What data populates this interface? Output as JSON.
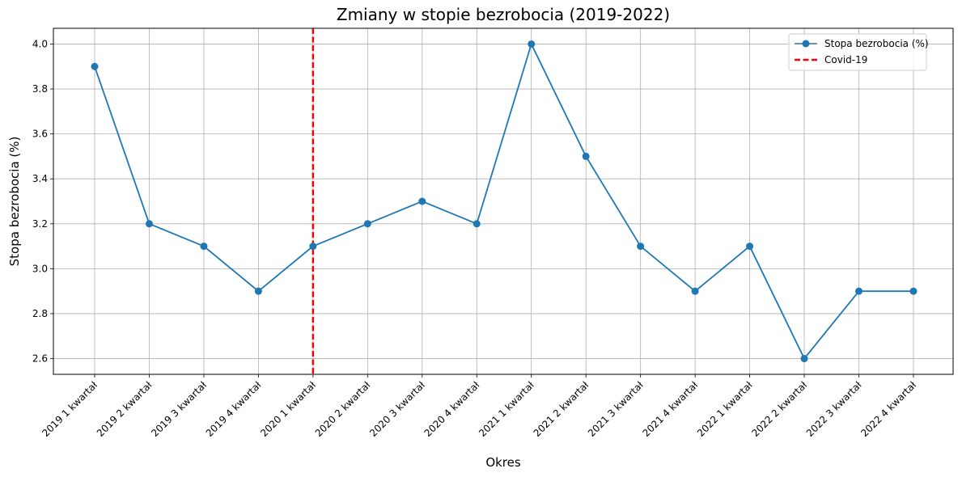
{
  "chart_data": {
    "type": "line",
    "title": "Zmiany w stopie bezrobocia (2019-2022)",
    "xlabel": "Okres",
    "ylabel": "Stopa bezrobocia (%)",
    "categories": [
      "2019 1 kwartał",
      "2019 2 kwartał",
      "2019 3 kwartał",
      "2019 4 kwartał",
      "2020 1 kwartał",
      "2020 2 kwartał",
      "2020 3 kwartał",
      "2020 4 kwartał",
      "2021 1 kwartał",
      "2021 2 kwartał",
      "2021 3 kwartał",
      "2021 4 kwartał",
      "2022 1 kwartał",
      "2022 2 kwartał",
      "2022 3 kwartał",
      "2022 4 kwartał"
    ],
    "series": [
      {
        "name": "Stopa bezrobocia (%)",
        "color": "#1f77b4",
        "values": [
          3.9,
          3.2,
          3.1,
          2.9,
          3.1,
          3.2,
          3.3,
          3.2,
          4.0,
          3.5,
          3.1,
          2.9,
          3.1,
          2.6,
          2.9,
          2.9
        ]
      }
    ],
    "annotations": [
      {
        "label": "Covid-19",
        "type": "vertical-dashed-line",
        "x": "2020 1 kwartał",
        "color": "#ff0000"
      }
    ],
    "ylim": [
      2.53,
      4.07
    ],
    "yticks": [
      "2.6",
      "2.8",
      "3.0",
      "3.2",
      "3.4",
      "3.6",
      "3.8",
      "4.0"
    ],
    "grid": true,
    "legend_position": "top-right"
  }
}
